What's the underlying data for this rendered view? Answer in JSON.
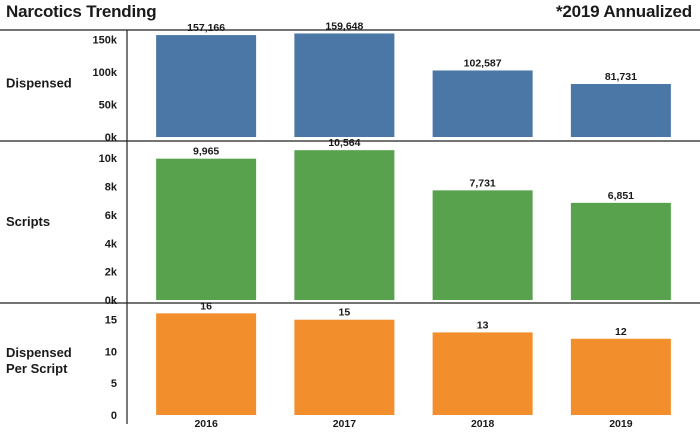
{
  "chart_data": {
    "type": "bar",
    "title": "Narcotics Trending",
    "note": "*2019 Annualized",
    "categories": [
      "2016",
      "2017",
      "2018",
      "2019"
    ],
    "panels": [
      {
        "label": [
          "Dispensed"
        ],
        "values": [
          157166,
          159648,
          102587,
          81731
        ],
        "value_labels": [
          "157,166",
          "159,648",
          "102,587",
          "81,731"
        ],
        "ylim": [
          0,
          165000
        ],
        "ticks": [
          0,
          50000,
          100000,
          150000
        ],
        "tick_labels": [
          "0k",
          "50k",
          "100k",
          "150k"
        ],
        "color": "#4b77a6"
      },
      {
        "label": [
          "Scripts"
        ],
        "values": [
          9965,
          10564,
          7731,
          6851
        ],
        "value_labels": [
          "9,965",
          "10,564",
          "7,731",
          "6,851"
        ],
        "ylim": [
          0,
          11000
        ],
        "ticks": [
          0,
          2000,
          4000,
          6000,
          8000,
          10000
        ],
        "tick_labels": [
          "0k",
          "2k",
          "4k",
          "6k",
          "8k",
          "10k"
        ],
        "color": "#58a14d"
      },
      {
        "label": [
          "Dispensed",
          "Per Script"
        ],
        "values": [
          16,
          15,
          13,
          12
        ],
        "value_labels": [
          "16",
          "15",
          "13",
          "12"
        ],
        "ylim": [
          0,
          17
        ],
        "ticks": [
          0,
          5,
          10,
          15
        ],
        "tick_labels": [
          "0",
          "5",
          "10",
          "15"
        ],
        "color": "#f28e2b"
      }
    ],
    "grid": false,
    "legend": "none"
  }
}
